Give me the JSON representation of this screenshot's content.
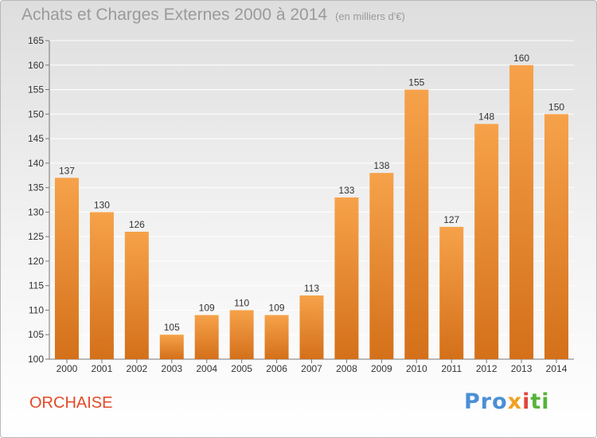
{
  "header": {
    "title": "Achats et Charges Externes 2000 à 2014",
    "unit": "(en milliers d'€)"
  },
  "footer": {
    "locality": "ORCHAISE",
    "logo_parts": [
      "Pro",
      "x",
      "i",
      "ti"
    ]
  },
  "colors": {
    "bar_light": "#f6a24a",
    "bar_dark": "#d4701a",
    "title": "#9a9a9a",
    "locality": "#e24b2a"
  },
  "chart_data": {
    "type": "bar",
    "title": "Achats et Charges Externes 2000 à 2014",
    "subtitle": "(en milliers d'€)",
    "xlabel": "",
    "ylabel": "",
    "categories": [
      "2000",
      "2001",
      "2002",
      "2003",
      "2004",
      "2005",
      "2006",
      "2007",
      "2008",
      "2009",
      "2010",
      "2011",
      "2012",
      "2013",
      "2014"
    ],
    "values": [
      137,
      130,
      126,
      105,
      109,
      110,
      109,
      113,
      133,
      138,
      155,
      127,
      148,
      160,
      150
    ],
    "ylim": [
      100,
      165
    ],
    "yticks": [
      100,
      105,
      110,
      115,
      120,
      125,
      130,
      135,
      140,
      145,
      150,
      155,
      160,
      165
    ],
    "grid": true,
    "legend": "none"
  }
}
